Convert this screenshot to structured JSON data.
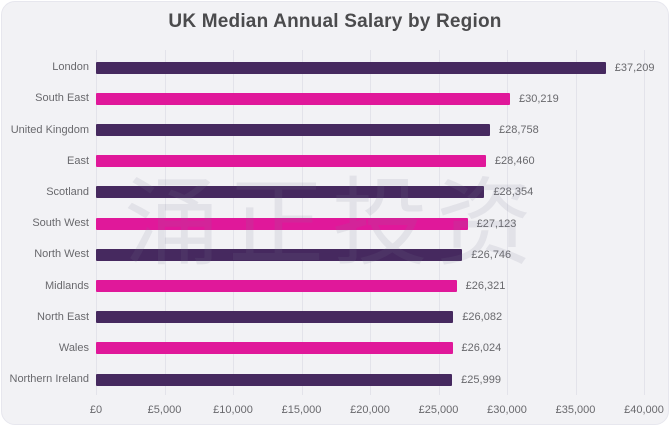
{
  "title": "UK Median Annual Salary by Region",
  "watermark": "涌正投资",
  "colors": {
    "purple": "#46295f",
    "pink": "#e0189a",
    "card_background": "#f2f2f5",
    "gridline": "#e3e3ea",
    "label_text": "#69696d",
    "title_text": "#4b4b4d"
  },
  "chart_data": {
    "type": "bar",
    "orientation": "horizontal",
    "title": "UK Median Annual Salary by Region",
    "categories": [
      "London",
      "South East",
      "United Kingdom",
      "East",
      "Scotland",
      "South West",
      "North West",
      "Midlands",
      "North East",
      "Wales",
      "Northern Ireland"
    ],
    "values": [
      37209,
      30219,
      28758,
      28460,
      28354,
      27123,
      26746,
      26321,
      26082,
      26024,
      25999
    ],
    "value_labels": [
      "£37,209",
      "£30,219",
      "£28,758",
      "£28,460",
      "£28,354",
      "£27,123",
      "£26,746",
      "£26,321",
      "£26,082",
      "£26,024",
      "£25,999"
    ],
    "bar_colors": [
      "#46295f",
      "#e0189a",
      "#46295f",
      "#e0189a",
      "#46295f",
      "#e0189a",
      "#46295f",
      "#e0189a",
      "#46295f",
      "#e0189a",
      "#46295f"
    ],
    "xlim": [
      0,
      40000
    ],
    "x_ticks": [
      0,
      5000,
      10000,
      15000,
      20000,
      25000,
      30000,
      35000,
      40000
    ],
    "x_tick_labels": [
      "£0",
      "£5,000",
      "£10,000",
      "£15,000",
      "£20,000",
      "£25,000",
      "£30,000",
      "£35,000",
      "£40,000"
    ],
    "grid": "vertical",
    "legend": "none"
  }
}
